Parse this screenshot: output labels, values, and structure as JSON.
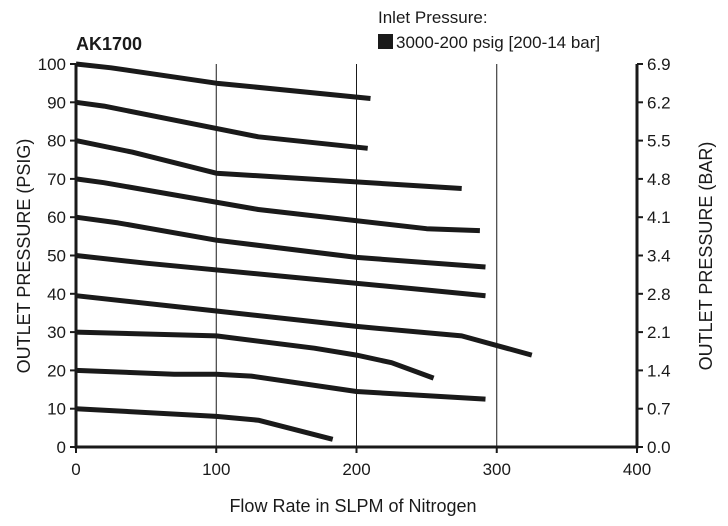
{
  "chart_data": {
    "type": "line",
    "title": "AK1700",
    "legend": {
      "title": "Inlet Pressure:",
      "entries": [
        {
          "label": "3000-200 psig [200-14 bar]",
          "color": "#1a1a1a"
        }
      ],
      "placement": "top-right"
    },
    "xlabel": "Flow Rate in SLPM of Nitrogen",
    "ylabel": "OUTLET PRESSURE (PSIG)",
    "y2label": "OUTLET PRESSURE (BAR)",
    "xlim": [
      0,
      400
    ],
    "ylim": [
      0,
      100
    ],
    "x_ticks": [
      "0",
      "100",
      "200",
      "300",
      "400"
    ],
    "y_ticks": [
      "0",
      "10",
      "20",
      "30",
      "40",
      "50",
      "60",
      "70",
      "80",
      "90",
      "100"
    ],
    "y2_ticks": [
      "0.0",
      "0.7",
      "1.4",
      "2.1",
      "2.8",
      "3.4",
      "4.1",
      "4.8",
      "5.5",
      "6.2",
      "6.9"
    ],
    "grid": {
      "vertical": true,
      "horizontal": false
    },
    "series": [
      {
        "x": [
          0,
          25,
          100,
          210
        ],
        "y": [
          100,
          99,
          95,
          91
        ]
      },
      {
        "x": [
          0,
          20,
          130,
          208
        ],
        "y": [
          90,
          89,
          81,
          78
        ]
      },
      {
        "x": [
          0,
          40,
          100,
          275
        ],
        "y": [
          80,
          77,
          71.5,
          67.5
        ]
      },
      {
        "x": [
          0,
          20,
          130,
          250,
          288
        ],
        "y": [
          70,
          69,
          62,
          57,
          56.5
        ]
      },
      {
        "x": [
          0,
          30,
          100,
          200,
          292
        ],
        "y": [
          60,
          58.5,
          54,
          49.5,
          47
        ]
      },
      {
        "x": [
          0,
          50,
          150,
          250,
          292
        ],
        "y": [
          50,
          48,
          44.5,
          41,
          39.5
        ]
      },
      {
        "x": [
          0,
          100,
          200,
          275,
          325
        ],
        "y": [
          39.5,
          35.5,
          31.5,
          29,
          24
        ]
      },
      {
        "x": [
          0,
          100,
          170,
          200,
          225,
          255
        ],
        "y": [
          30,
          29,
          25.8,
          24,
          22,
          18
        ]
      },
      {
        "x": [
          0,
          70,
          100,
          125,
          200,
          292
        ],
        "y": [
          20,
          19,
          19,
          18.5,
          14.5,
          12.5
        ]
      },
      {
        "x": [
          0,
          100,
          130,
          183
        ],
        "y": [
          10,
          8,
          7,
          2
        ]
      }
    ]
  }
}
